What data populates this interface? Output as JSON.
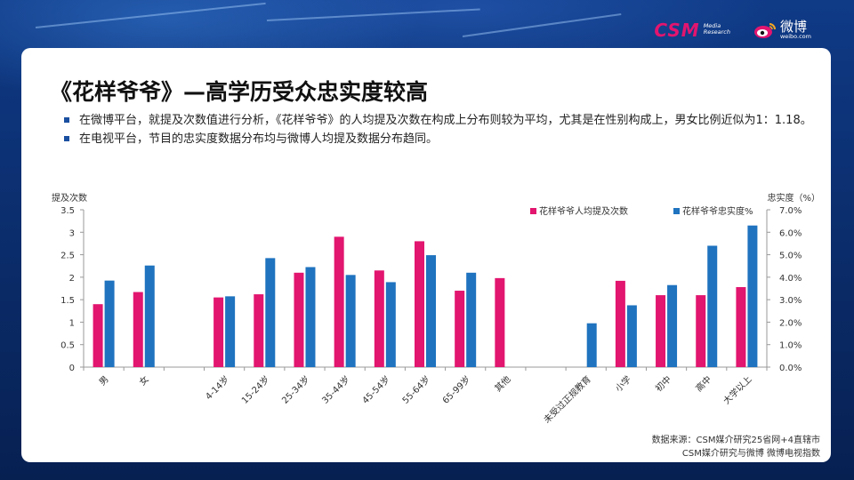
{
  "header": {
    "csm_logo": "CSM",
    "csm_tagline_1": "Media",
    "csm_tagline_2": "Research",
    "weibo_name": "微博",
    "weibo_url": "weibo.com"
  },
  "slide": {
    "title": "《花样爷爷》—高学历受众忠实度较高",
    "bullets": [
      "在微博平台，就提及次数值进行分析，《花样爷爷》的人均提及次数在构成上分布则较为平均，尤其是在性别构成上，男女比例近似为1：1.18。",
      "在电视平台，节目的忠实度数据分布均与微博人均提及数据分布趋同。"
    ],
    "source_line_1": "数据来源：CSM媒介研究25省网+4直辖市",
    "source_line_2": "CSM媒介研究与微博 微博电视指数"
  },
  "colors": {
    "mention": "#e2156f",
    "loyalty": "#1f73bf",
    "accent": "#1a4fa0"
  },
  "chart_data": {
    "type": "bar",
    "ylabel_left": "提及次数",
    "ylabel_right": "忠实度（%）",
    "left_axis": {
      "min": 0,
      "max": 3.5,
      "ticks": [
        "0",
        "0.5",
        "1",
        "1.5",
        "2",
        "2.5",
        "3",
        "3.5"
      ]
    },
    "right_axis": {
      "min": 0,
      "max": 7,
      "ticks": [
        "0.0%",
        "1.0%",
        "2.0%",
        "3.0%",
        "4.0%",
        "5.0%",
        "6.0%",
        "7.0%"
      ]
    },
    "categories": [
      "男",
      "女",
      "",
      "4-14岁",
      "15-24岁",
      "25-34岁",
      "35-44岁",
      "45-54岁",
      "55-64岁",
      "65-99岁",
      "其他",
      "",
      "未受过正规教育",
      "小学",
      "初中",
      "高中",
      "大学以上"
    ],
    "series": [
      {
        "name": "花样爷爷人均提及次数",
        "axis": "left",
        "values": [
          1.4,
          1.67,
          null,
          1.55,
          1.62,
          2.1,
          2.9,
          2.15,
          2.8,
          1.7,
          1.98,
          null,
          null,
          1.92,
          1.6,
          1.6,
          1.78
        ]
      },
      {
        "name": "花样爷爷忠实度%",
        "axis": "right",
        "values": [
          3.85,
          4.52,
          null,
          3.15,
          4.85,
          4.45,
          4.1,
          3.78,
          4.98,
          4.2,
          null,
          null,
          1.95,
          2.75,
          3.65,
          5.4,
          6.3
        ]
      }
    ],
    "legend_placement": "top-right",
    "grid": false
  }
}
